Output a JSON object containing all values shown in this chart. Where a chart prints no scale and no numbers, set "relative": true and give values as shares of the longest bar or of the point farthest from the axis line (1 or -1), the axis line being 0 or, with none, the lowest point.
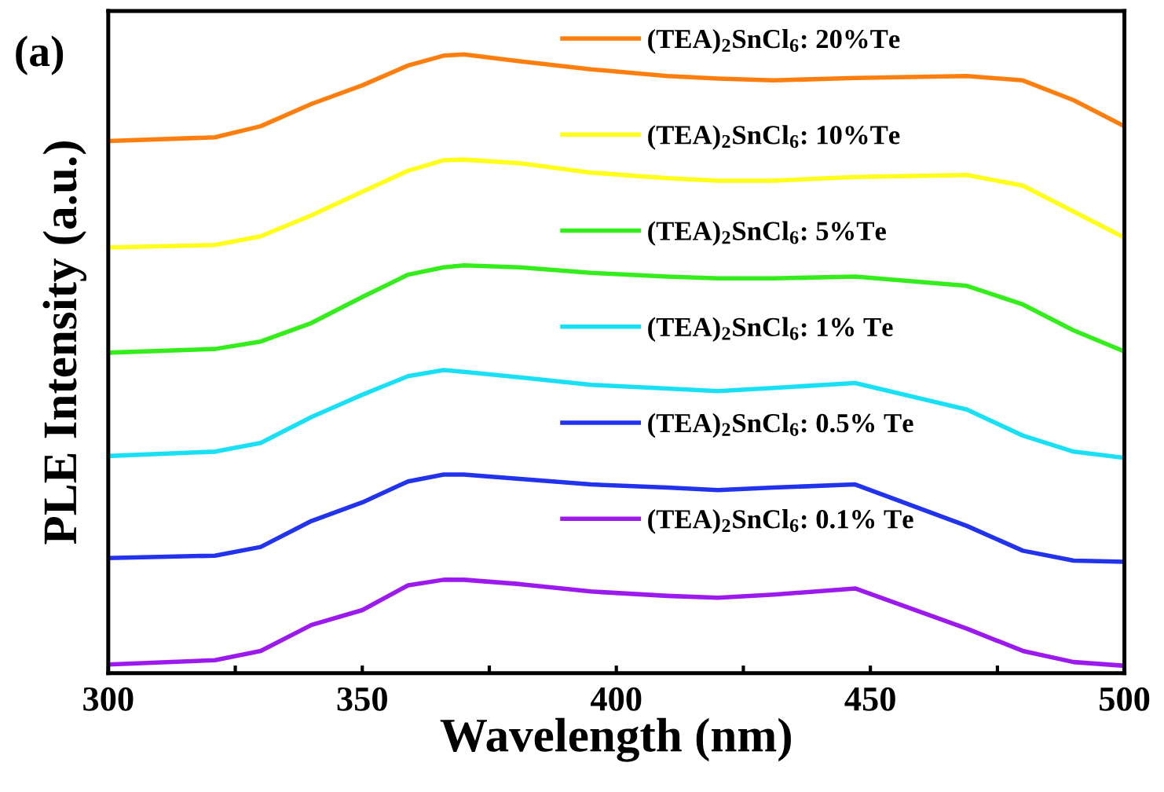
{
  "chart_data": {
    "type": "line",
    "relative": true,
    "xlabel": "Wavelength (nm)",
    "ylabel": "PLE Intensity (a.u.)",
    "annotations": [
      "(a)"
    ],
    "x": [
      300,
      321,
      330,
      340,
      350,
      359,
      366,
      370,
      381,
      395,
      410,
      420,
      431,
      447,
      469,
      480,
      490,
      500
    ],
    "xlim": [
      300,
      500
    ],
    "xticks": [
      300,
      {
        "value": 325,
        "label": null
      },
      350,
      {
        "value": 375,
        "label": null
      },
      400,
      {
        "value": 425,
        "label": null
      },
      450,
      {
        "value": 475,
        "label": null
      },
      500
    ],
    "legend": "top",
    "grid": false,
    "tick_labels": "x",
    "series": [
      {
        "name": "(TEA)$_{2}$SnCl$_{6}$: 20%Te",
        "color": "#ff7f0e",
        "values": [
          0.86,
          0.866,
          0.884,
          0.92,
          0.95,
          0.982,
          0.998,
          1.0,
          0.989,
          0.976,
          0.965,
          0.961,
          0.958,
          0.962,
          0.965,
          0.958,
          0.926,
          0.884
        ]
      },
      {
        "name": "(TEA)$_{2}$SnCl$_{6}$: 10%Te",
        "color": "#ffff1a",
        "values": [
          0.688,
          0.692,
          0.706,
          0.74,
          0.778,
          0.812,
          0.829,
          0.83,
          0.824,
          0.809,
          0.8,
          0.796,
          0.796,
          0.802,
          0.805,
          0.788,
          0.746,
          0.704
        ]
      },
      {
        "name": "(TEA)$_{2}$SnCl$_{6}$: 5%Te",
        "color": "#33ee1a",
        "values": [
          0.518,
          0.524,
          0.536,
          0.566,
          0.608,
          0.644,
          0.656,
          0.659,
          0.656,
          0.647,
          0.641,
          0.638,
          0.638,
          0.641,
          0.626,
          0.596,
          0.554,
          0.52
        ]
      },
      {
        "name": "(TEA)$_{2}$SnCl$_{6}$: 1% Te",
        "color": "#1ae0f5",
        "values": [
          0.351,
          0.358,
          0.372,
          0.414,
          0.45,
          0.48,
          0.49,
          0.487,
          0.478,
          0.466,
          0.46,
          0.456,
          0.461,
          0.469,
          0.426,
          0.384,
          0.358,
          0.348
        ]
      },
      {
        "name": "(TEA)$_{2}$SnCl$_{6}$: 0.5% Te",
        "color": "#2233ee",
        "values": [
          0.186,
          0.19,
          0.204,
          0.246,
          0.276,
          0.31,
          0.321,
          0.321,
          0.314,
          0.305,
          0.3,
          0.296,
          0.3,
          0.305,
          0.238,
          0.198,
          0.182,
          0.18
        ]
      },
      {
        "name": "(TEA)$_{2}$SnCl$_{6}$: 0.1% Te",
        "color": "#9d1aee",
        "values": [
          0.014,
          0.021,
          0.036,
          0.078,
          0.102,
          0.142,
          0.151,
          0.151,
          0.144,
          0.132,
          0.125,
          0.122,
          0.127,
          0.137,
          0.072,
          0.036,
          0.018,
          0.012
        ]
      }
    ]
  }
}
